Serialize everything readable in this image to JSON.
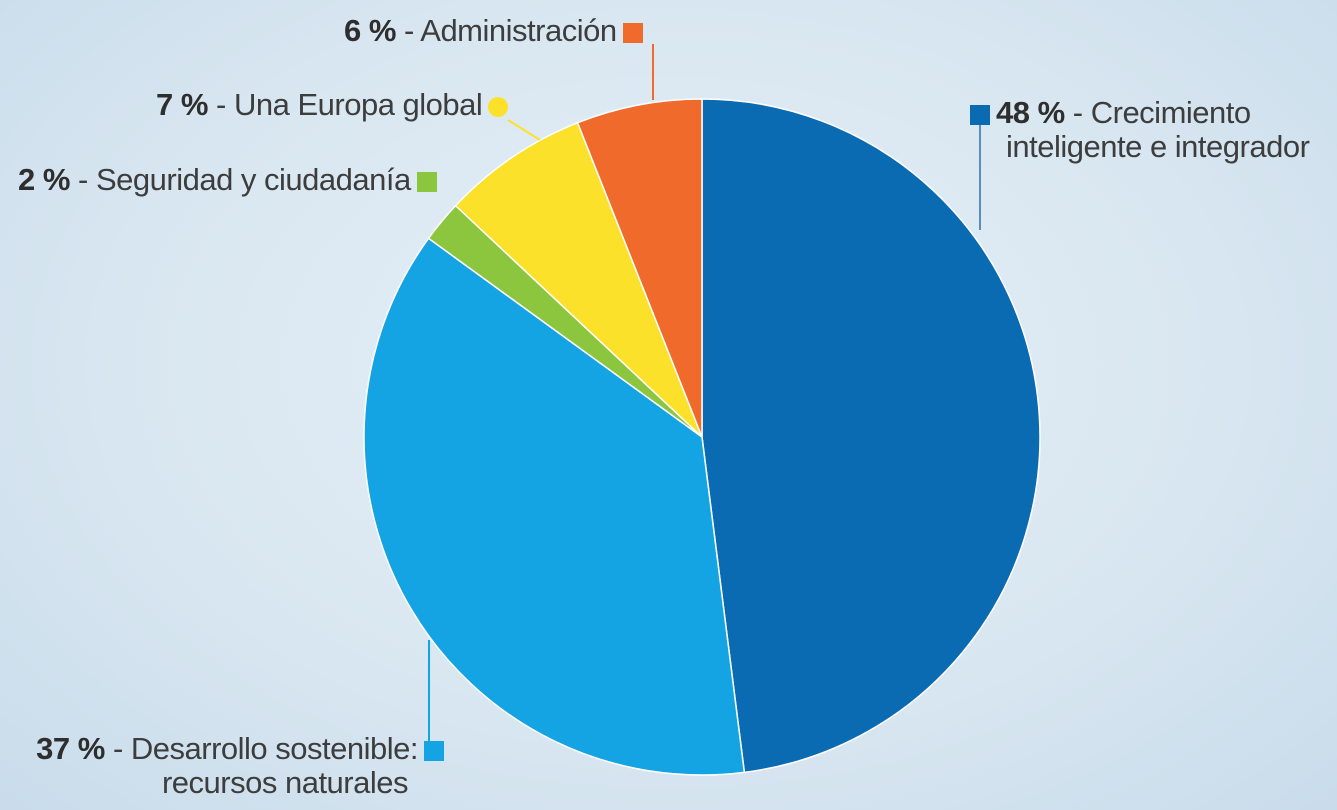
{
  "chart_data": {
    "type": "pie",
    "start_angle_deg": 0,
    "direction": "clockwise",
    "slices": [
      {
        "label": "Crecimiento inteligente e integrador",
        "label_lines": [
          "Crecimiento",
          "inteligente e integrador"
        ],
        "pct_text": "48 %",
        "value": 48,
        "color": "#0a6bb3"
      },
      {
        "label": "Desarrollo sostenible: recursos naturales",
        "label_lines": [
          "Desarrollo sostenible:",
          "recursos naturales"
        ],
        "pct_text": "37 %",
        "value": 37,
        "color": "#14a3e3"
      },
      {
        "label": "Seguridad y ciudadanía",
        "label_lines": [
          "Seguridad y ciudadanía"
        ],
        "pct_text": "2 %",
        "value": 2,
        "color": "#8cc63e"
      },
      {
        "label": "Una Europa global",
        "label_lines": [
          "Una Europa global"
        ],
        "pct_text": "7 %",
        "value": 7,
        "color": "#fbe12a"
      },
      {
        "label": "Administración",
        "label_lines": [
          "Administración"
        ],
        "pct_text": "6 %",
        "value": 6,
        "color": "#f06a2c"
      }
    ]
  }
}
